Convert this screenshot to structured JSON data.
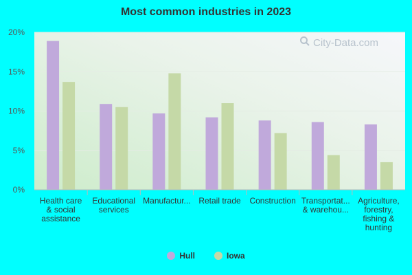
{
  "chart_data": {
    "type": "bar",
    "title": "Most common industries in 2023",
    "xlabel": "",
    "ylabel": "",
    "ylim": [
      0,
      20
    ],
    "yticks": [
      "0%",
      "5%",
      "10%",
      "15%",
      "20%"
    ],
    "ytick_values": [
      0,
      5,
      10,
      15,
      20
    ],
    "categories": [
      [
        "Health care",
        "& social",
        "assistance"
      ],
      [
        "Educational",
        "services"
      ],
      [
        "Manufactur..."
      ],
      [
        "Retail trade"
      ],
      [
        "Construction"
      ],
      [
        "Transportat...",
        "& warehou..."
      ],
      [
        "Agriculture,",
        "forestry,",
        "fishing &",
        "hunting"
      ]
    ],
    "series": [
      {
        "name": "Hull",
        "color": "#c0a9db",
        "values": [
          18.9,
          10.9,
          9.7,
          9.2,
          8.8,
          8.6,
          8.3
        ]
      },
      {
        "name": "Iowa",
        "color": "#c5d9a7",
        "values": [
          13.7,
          10.5,
          14.8,
          11.0,
          7.2,
          4.4,
          3.5
        ]
      }
    ],
    "legend_position": "bottom"
  },
  "watermark": {
    "text": "City-Data.com",
    "icon": "search-icon"
  }
}
